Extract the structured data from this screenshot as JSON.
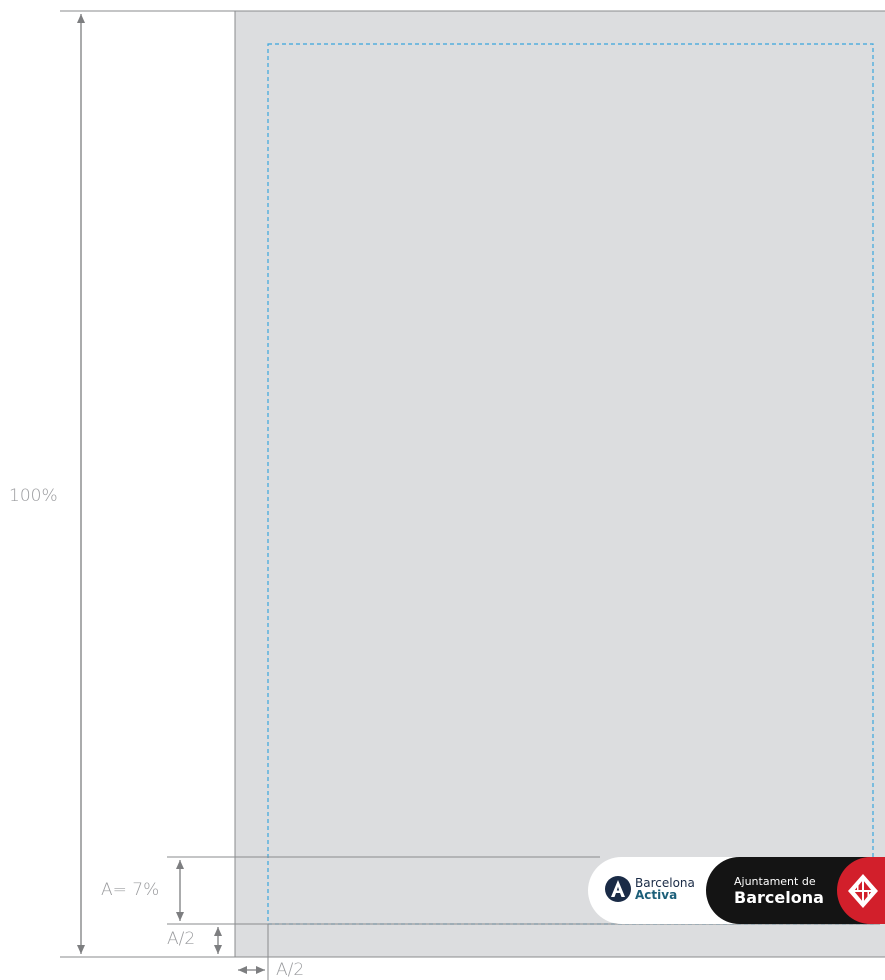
{
  "labels": {
    "full_height": "100%",
    "logo_height": "A= 7%",
    "bottom_margin": "A/2",
    "side_margin": "A/2"
  },
  "logos": {
    "barcelona_activa": {
      "line1": "Barcelona",
      "line2": "Activa"
    },
    "ajuntament": {
      "line1": "Ajuntament de",
      "line2": "Barcelona"
    }
  },
  "colors": {
    "page_fill": "#dcdddf",
    "page_border": "#8a8b8d",
    "safe_area_dashed": "#3aa6dd",
    "dimension_lines": "#7d7e80",
    "label_text": "#9a9b9e",
    "activa_navy": "#1a2b46",
    "activa_teal": "#1c5f79",
    "ajuntament_black": "#141414",
    "barcelona_red": "#d21f2b"
  }
}
